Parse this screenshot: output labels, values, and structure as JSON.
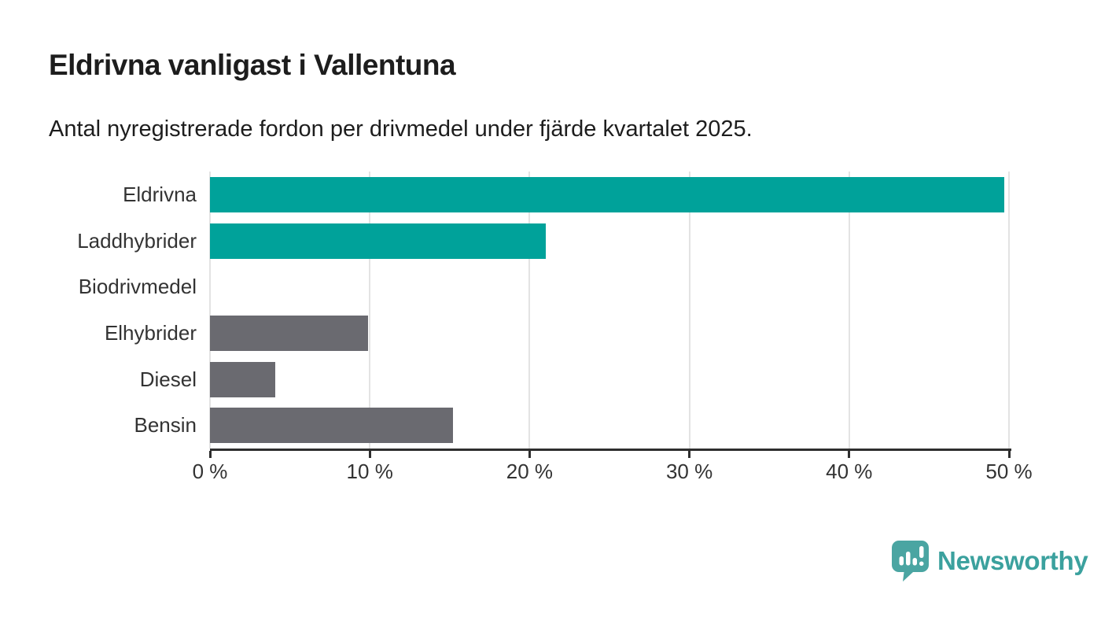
{
  "chart_data": {
    "type": "bar",
    "orientation": "horizontal",
    "title": "Eldrivna vanligast i Vallentuna",
    "subtitle": "Antal nyregistrerade fordon per drivmedel under fjärde kvartalet 2025.",
    "categories": [
      "Eldrivna",
      "Laddhybrider",
      "Biodrivmedel",
      "Elhybrider",
      "Diesel",
      "Bensin"
    ],
    "values": [
      49.7,
      21.0,
      0,
      9.9,
      4.1,
      15.2
    ],
    "unit": "%",
    "bar_color_roles": [
      "highlight",
      "highlight",
      "highlight",
      "base",
      "base",
      "base"
    ],
    "x_ticks": [
      {
        "value": 0,
        "label": "0 %"
      },
      {
        "value": 10,
        "label": "10 %"
      },
      {
        "value": 20,
        "label": "20 %"
      },
      {
        "value": 30,
        "label": "30 %"
      },
      {
        "value": 40,
        "label": "40 %"
      },
      {
        "value": 50,
        "label": "50 %"
      }
    ],
    "xlim": [
      0,
      50
    ],
    "grid": "vertical",
    "legend": "none"
  },
  "colors": {
    "bar_highlight": "#00a29a",
    "bar_base": "#6a6a70",
    "gridline": "#e3e3e3",
    "axis": "#2e2e2e",
    "title_text": "#1d1d1d",
    "label_text": "#333333",
    "logo_icon_teal": "#4aa5a2",
    "logo_text_teal": "#3ba19e",
    "background": "#ffffff"
  },
  "branding": {
    "logo_text": "Newsworthy"
  }
}
